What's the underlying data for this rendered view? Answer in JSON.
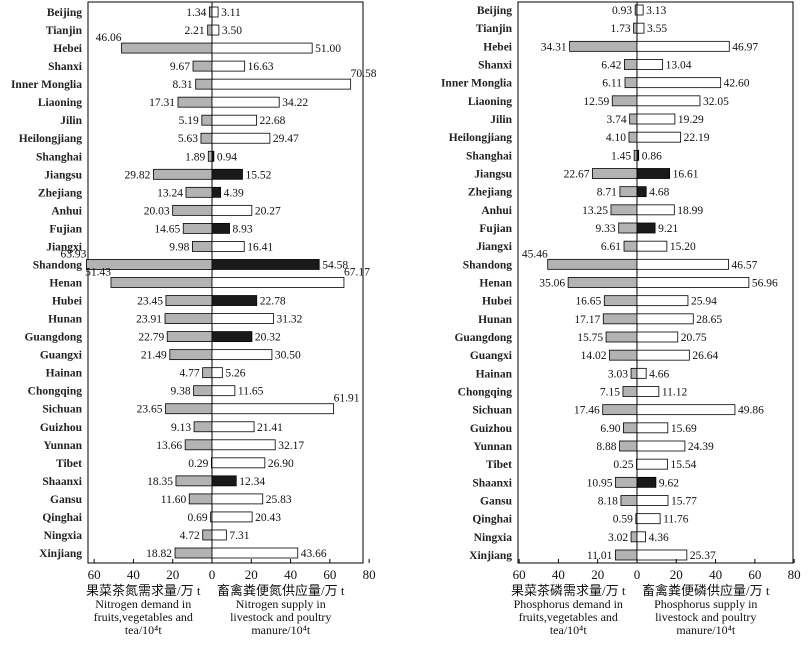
{
  "chart_data": [
    {
      "type": "bar",
      "orientation": "horizontal-diverging",
      "categories": [
        "Beijing",
        "Tianjin",
        "Hebei",
        "Shanxi",
        "Inner Monglia",
        "Liaoning",
        "Jilin",
        "Heilongjiang",
        "Shanghai",
        "Jiangsu",
        "Zhejiang",
        "Anhui",
        "Fujian",
        "Jiangxi",
        "Shandong",
        "Henan",
        "Hubei",
        "Hunan",
        "Guangdong",
        "Guangxi",
        "Hainan",
        "Chongqing",
        "Sichuan",
        "Guizhou",
        "Yunnan",
        "Tibet",
        "Shaanxi",
        "Gansu",
        "Qinghai",
        "Ningxia",
        "Xinjiang"
      ],
      "series": [
        {
          "values": [
            1.34,
            2.21,
            46.06,
            9.67,
            8.31,
            17.31,
            5.19,
            5.63,
            1.89,
            29.82,
            13.24,
            20.03,
            14.65,
            9.98,
            63.93,
            51.43,
            23.45,
            23.91,
            22.79,
            21.49,
            4.77,
            9.38,
            23.65,
            9.13,
            13.66,
            0.29,
            18.35,
            11.6,
            0.69,
            4.72,
            18.82
          ]
        },
        {
          "values": [
            3.11,
            3.5,
            51.0,
            16.63,
            70.58,
            34.22,
            22.68,
            29.47,
            0.94,
            15.52,
            4.39,
            20.27,
            8.93,
            16.41,
            54.58,
            67.17,
            22.78,
            31.32,
            20.32,
            30.5,
            5.26,
            11.65,
            61.91,
            21.41,
            32.17,
            26.9,
            12.34,
            25.83,
            20.43,
            7.31,
            43.66
          ]
        }
      ],
      "value_labels": {
        "left": [
          "1.34",
          "2.21",
          "46.06",
          "9.67",
          "8.31",
          "17.31",
          "5.19",
          "5.63",
          "1.89",
          "29.82",
          "13.24",
          "20.03",
          "14.65",
          "9.98",
          "63.93",
          "51.43",
          "23.45",
          "23.91",
          "22.79",
          "21.49",
          "4.77",
          "9.38",
          "23.65",
          "9.13",
          "13.66",
          "0.29",
          "18.35",
          "11.60",
          "0.69",
          "4.72",
          "18.82"
        ],
        "right": [
          "3.11",
          "3.50",
          "51.00",
          "16.63",
          "70.58",
          "34.22",
          "22.68",
          "29.47",
          "0.94",
          "15.52",
          "4.39",
          "20.27",
          "8.93",
          "16.41",
          "54.58",
          "67.17",
          "22.78",
          "31.32",
          "20.32",
          "30.50",
          "5.26",
          "11.65",
          "61.91",
          "21.41",
          "32.17",
          "26.90",
          "12.34",
          "25.83",
          "20.43",
          "7.31",
          "43.66"
        ]
      },
      "xlim": [
        -60,
        80
      ],
      "xticks": [
        "60",
        "40",
        "20",
        "0",
        "20",
        "40",
        "60",
        "80"
      ],
      "xlabel_left": [
        "果菜茶氮需求量/万 t",
        "Nitrogen demand in",
        "fruits,vegetables and",
        "tea/10⁴t"
      ],
      "xlabel_right": [
        "畜禽粪便氮供应量/万 t",
        "Nitrogen supply in",
        "livestock and poultry",
        "manure/10⁴t"
      ],
      "colors": {
        "demand": "#b3b3b3",
        "supply_surplus": "#ffffff",
        "supply_deficit": "#1a1a1a",
        "outline": "#000000"
      }
    },
    {
      "type": "bar",
      "orientation": "horizontal-diverging",
      "categories": [
        "Beijing",
        "Tianjin",
        "Hebei",
        "Shanxi",
        "Inner Monglia",
        "Liaoning",
        "Jilin",
        "Heilongjiang",
        "Shanghai",
        "Jiangsu",
        "Zhejiang",
        "Anhui",
        "Fujian",
        "Jiangxi",
        "Shandong",
        "Henan",
        "Hubei",
        "Hunan",
        "Guangdong",
        "Guangxi",
        "Hainan",
        "Chongqing",
        "Sichuan",
        "Guizhou",
        "Yunnan",
        "Tibet",
        "Shaanxi",
        "Gansu",
        "Qinghai",
        "Ningxia",
        "Xinjiang"
      ],
      "series": [
        {
          "values": [
            0.93,
            1.73,
            34.31,
            6.42,
            6.11,
            12.59,
            3.74,
            4.1,
            1.45,
            22.67,
            8.71,
            13.25,
            9.33,
            6.61,
            45.46,
            35.06,
            16.65,
            17.17,
            15.75,
            14.02,
            3.03,
            7.15,
            17.46,
            6.9,
            8.88,
            0.25,
            10.95,
            8.18,
            0.59,
            3.02,
            11.01
          ]
        },
        {
          "values": [
            3.13,
            3.55,
            46.97,
            13.04,
            42.6,
            32.05,
            19.29,
            22.19,
            0.86,
            16.61,
            4.68,
            18.99,
            9.21,
            15.2,
            46.57,
            56.96,
            25.94,
            28.65,
            20.75,
            26.64,
            4.66,
            11.12,
            49.86,
            15.69,
            24.39,
            15.54,
            9.62,
            15.77,
            11.76,
            4.36,
            25.37
          ]
        }
      ],
      "value_labels": {
        "left": [
          "0.93",
          "1.73",
          "34.31",
          "6.42",
          "6.11",
          "12.59",
          "3.74",
          "4.10",
          "1.45",
          "22.67",
          "8.71",
          "13.25",
          "9.33",
          "6.61",
          "45.46",
          "35.06",
          "16.65",
          "17.17",
          "15.75",
          "14.02",
          "3.03",
          "7.15",
          "17.46",
          "6.90",
          "8.88",
          "0.25",
          "10.95",
          "8.18",
          "0.59",
          "3.02",
          "11.01"
        ],
        "right": [
          "3.13",
          "3.55",
          "46.97",
          "13.04",
          "42.60",
          "32.05",
          "19.29",
          "22.19",
          "0.86",
          "16.61",
          "4.68",
          "18.99",
          "9.21",
          "15.20",
          "46.57",
          "56.96",
          "25.94",
          "28.65",
          "20.75",
          "26.64",
          "4.66",
          "11.12",
          "49.86",
          "15.69",
          "24.39",
          "15.54",
          "9.62",
          "15.77",
          "11.76",
          "4.36",
          "25.37"
        ]
      },
      "xlim": [
        -60,
        80
      ],
      "xticks": [
        "60",
        "40",
        "20",
        "0",
        "20",
        "40",
        "60",
        "80"
      ],
      "xlabel_left": [
        "果菜茶磷需求量/万 t",
        "Phosphorus demand in",
        "fruits,vegetables and",
        "tea/10⁴t"
      ],
      "xlabel_right": [
        "畜禽粪便磷供应量/万 t",
        "Phosphorus supply in",
        "livestock and poultry",
        "manure/10⁴t"
      ],
      "colors": {
        "demand": "#b3b3b3",
        "supply_surplus": "#ffffff",
        "supply_deficit": "#1a1a1a",
        "outline": "#000000"
      }
    }
  ]
}
